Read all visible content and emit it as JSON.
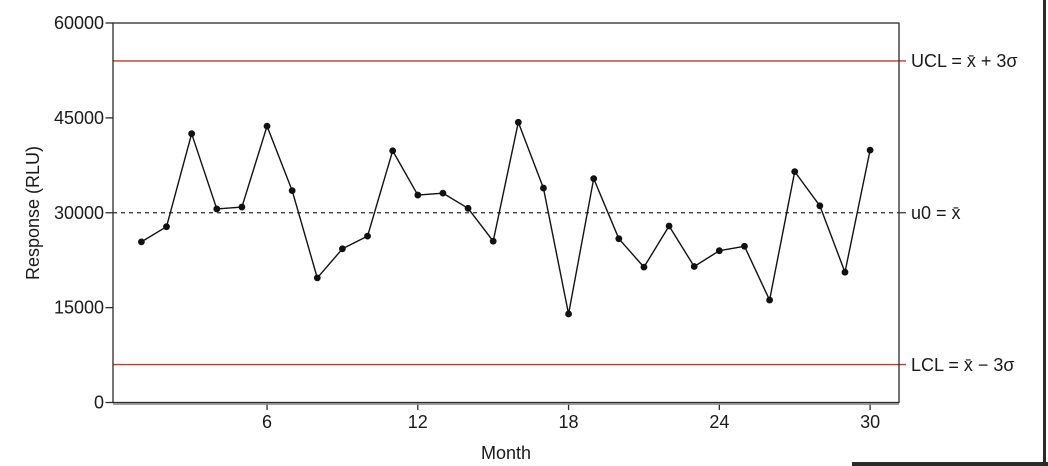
{
  "chart_data": {
    "type": "line",
    "title": "",
    "xlabel": "Month",
    "ylabel": "Response (RLU)",
    "x": [
      1,
      2,
      3,
      4,
      5,
      6,
      7,
      8,
      9,
      10,
      11,
      12,
      13,
      14,
      15,
      16,
      17,
      18,
      19,
      20,
      21,
      22,
      23,
      24,
      25,
      26,
      27,
      28,
      29,
      30
    ],
    "series": [
      {
        "name": "Response",
        "values": [
          25400,
          27800,
          42500,
          30600,
          30900,
          43700,
          33500,
          19700,
          24300,
          26300,
          39800,
          32800,
          33100,
          30700,
          25500,
          44300,
          33900,
          14000,
          35400,
          25900,
          21400,
          27900,
          21500,
          24000,
          24700,
          16200,
          36500,
          31100,
          20600,
          39900
        ]
      }
    ],
    "xticks": [
      6,
      12,
      18,
      24,
      30
    ],
    "yticks": [
      0,
      15000,
      30000,
      45000,
      60000
    ],
    "xlim": [
      -0.13,
      31.15
    ],
    "ylim": [
      0,
      60000
    ],
    "grid": false,
    "legend": "none",
    "marker": "filled-circle",
    "center_line": {
      "value": 30000,
      "label": "u0 = x̄",
      "style": "dashed"
    },
    "ucl": {
      "value": 54000,
      "label": "UCL = x̄ + 3σ",
      "style": "solid"
    },
    "lcl": {
      "value": 6000,
      "label": "LCL = x̄ − 3σ",
      "style": "solid"
    },
    "colors": {
      "series": "#111111",
      "limit_lines": "#c0392b",
      "center_line": "#2a2a2a",
      "axis_box": "#2b2b2b",
      "x_baseline": "#8f8f8f"
    }
  }
}
